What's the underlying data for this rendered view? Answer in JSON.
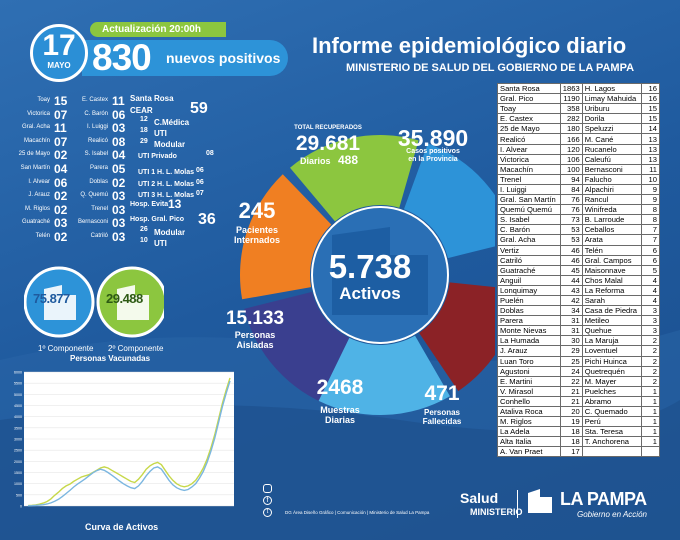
{
  "header": {
    "day": "17",
    "month": "MAYO",
    "update_label": "Actualización 20:00h",
    "new_cases": "830",
    "new_cases_label": "nuevos positivos",
    "title": "Informe epidemiológico diario",
    "subtitle": "MINISTERIO DE SALUD DEL GOBIERNO DE LA PAMPA"
  },
  "localities_left": [
    {
      "name": "Toay",
      "value": "15"
    },
    {
      "name": "Victorica",
      "value": "07"
    },
    {
      "name": "Gral. Acha",
      "value": "11"
    },
    {
      "name": "Macachín",
      "value": "07"
    },
    {
      "name": "25 de Mayo",
      "value": "02"
    },
    {
      "name": "San Martín",
      "value": "04"
    },
    {
      "name": "I. Alvear",
      "value": "06"
    },
    {
      "name": "J. Arauz",
      "value": "02"
    },
    {
      "name": "M. Riglos",
      "value": "02"
    },
    {
      "name": "Guatraché",
      "value": "03"
    },
    {
      "name": "Telén",
      "value": "02"
    }
  ],
  "localities_mid": [
    {
      "name": "E. Castex",
      "value": "11"
    },
    {
      "name": "C. Barón",
      "value": "06"
    },
    {
      "name": "I. Luiggi",
      "value": "03"
    },
    {
      "name": "Realicó",
      "value": "08"
    },
    {
      "name": "S. Isabel",
      "value": "04"
    },
    {
      "name": "Parera",
      "value": "05"
    },
    {
      "name": "Doblas",
      "value": "02"
    },
    {
      "name": "Q. Quemú",
      "value": "03"
    },
    {
      "name": "Trenel",
      "value": "03"
    },
    {
      "name": "Bernasconi",
      "value": "03"
    },
    {
      "name": "Catriló",
      "value": "03"
    }
  ],
  "santa_rosa": {
    "label": "Santa Rosa",
    "cear_label": "CEAR",
    "cear_value": "59",
    "lines": [
      {
        "value": "12",
        "label": "C.Médica"
      },
      {
        "value": "18",
        "label": "UTI"
      },
      {
        "value": "29",
        "label": "Modular"
      }
    ],
    "uti_privado_label": "UTI Privado",
    "uti_privado_value": "08",
    "uti_lines": [
      {
        "label": "UTI 1 H. L. Molas",
        "value": "06"
      },
      {
        "label": "UTI 2 H. L. Molas",
        "value": "06"
      },
      {
        "label": "UTI 3 H. L. Molas",
        "value": "07"
      }
    ],
    "evita_label": "Hosp. Evita",
    "evita_value": "13"
  },
  "gral_pico": {
    "label": "Hosp. Gral. Pico",
    "value": "36",
    "lines": [
      {
        "value": "26",
        "label": "Modular"
      },
      {
        "value": "10",
        "label": "UTI"
      }
    ]
  },
  "vaccination": {
    "first_value": "75.877",
    "second_value": "29.488",
    "first_label": "1º Componente",
    "second_label": "2º Componente",
    "title": "Personas Vacunadas"
  },
  "chart_data": {
    "type": "line",
    "title": "Curva de Activos",
    "xlabel": "",
    "ylabel": "",
    "ylim": [
      0,
      6000
    ],
    "y_ticks": [
      "6000",
      "5500",
      "5000",
      "4500",
      "4000",
      "3500",
      "3000",
      "2500",
      "2000",
      "1500",
      "1000",
      "500",
      "0"
    ],
    "series": [
      {
        "values": [
          20,
          30,
          50,
          80,
          130,
          200,
          320,
          480,
          620,
          780,
          900,
          980,
          1100,
          1200,
          1300,
          1350,
          1400,
          1500,
          1600,
          1700,
          1750,
          1700,
          1600,
          1500,
          1400,
          1300,
          1200,
          1100,
          1050,
          1200,
          1400,
          1650,
          1800,
          1900,
          1950,
          1850,
          1600,
          1350,
          1150,
          1000,
          900,
          860,
          900,
          1000,
          1150,
          1400,
          1700,
          2100,
          2600,
          3200,
          3900,
          4600,
          5200,
          5738
        ],
        "color": "#c7d84a"
      },
      {
        "values": [
          10,
          15,
          25,
          40,
          60,
          90,
          140,
          210,
          300,
          420,
          560,
          700,
          850,
          980,
          1100,
          1220,
          1350,
          1480,
          1580,
          1650,
          1600,
          1500,
          1380,
          1250,
          1120,
          1000,
          900,
          820,
          780,
          900,
          1100,
          1350,
          1550,
          1700,
          1750,
          1650,
          1400,
          1150,
          950,
          820,
          740,
          700,
          740,
          850,
          1000,
          1250,
          1550,
          1950,
          2450,
          3050,
          3750,
          4450,
          5050,
          5600
        ],
        "color": "#7bb6e0"
      }
    ]
  },
  "wheel": {
    "recovered_label": "TOTAL RECUPERADOS",
    "recovered_value": "29.681",
    "daily_label": "Diarios",
    "daily_value": "488",
    "positives_value": "35.890",
    "positives_label_1": "Casos positivos",
    "positives_label_2": "en la Provincia",
    "hospitalized_value": "245",
    "hospitalized_label_1": "Pacientes",
    "hospitalized_label_2": "Internados",
    "active_value": "5.738",
    "active_label": "Activos",
    "isolated_value": "15.133",
    "isolated_label_1": "Personas",
    "isolated_label_2": "Aisladas",
    "samples_value": "2468",
    "samples_label_1": "Muestras",
    "samples_label_2": "Diarias",
    "deaths_value": "471",
    "deaths_label_1": "Personas",
    "deaths_label_2": "Fallecidas",
    "colors": {
      "recovered": "#8cc63f",
      "positives": "#2d93d8",
      "hospitalized": "#f07f22",
      "isolated": "#3a3f8f",
      "samples": "#4fb3e6",
      "deaths": "#8b2226"
    }
  },
  "table": [
    [
      "Santa Rosa",
      "1863",
      "H. Lagos",
      "16"
    ],
    [
      "Gral. Pico",
      "1190",
      "Limay Mahuida",
      "16"
    ],
    [
      "Toay",
      "358",
      "Uriburu",
      "15"
    ],
    [
      "E. Castex",
      "282",
      "Dorila",
      "15"
    ],
    [
      "25 de Mayo",
      "180",
      "Speluzzi",
      "14"
    ],
    [
      "Realicó",
      "166",
      "M. Cané",
      "13"
    ],
    [
      "I. Alvear",
      "120",
      "Rucanelo",
      "13"
    ],
    [
      "Victorica",
      "106",
      "Caleufú",
      "13"
    ],
    [
      "Macachín",
      "100",
      "Bernasconi",
      "11"
    ],
    [
      "Trenel",
      "94",
      "Falucho",
      "10"
    ],
    [
      "I. Luiggi",
      "84",
      "Alpachiri",
      "9"
    ],
    [
      "Gral. San Martín",
      "76",
      "Rancul",
      "9"
    ],
    [
      "Quemú Quemú",
      "76",
      "Winifreda",
      "8"
    ],
    [
      "S. Isabel",
      "73",
      "B. Larroude",
      "8"
    ],
    [
      "C. Barón",
      "53",
      "Ceballos",
      "7"
    ],
    [
      "Gral. Acha",
      "53",
      "Arata",
      "7"
    ],
    [
      "Vertiz",
      "46",
      "Telén",
      "6"
    ],
    [
      "Catriló",
      "46",
      "Gral. Campos",
      "6"
    ],
    [
      "Guatraché",
      "45",
      "Maisonnave",
      "5"
    ],
    [
      "Anguil",
      "44",
      "Chos Malal",
      "4"
    ],
    [
      "Lonquimay",
      "43",
      "La Reforma",
      "4"
    ],
    [
      "Puelén",
      "42",
      "Sarah",
      "4"
    ],
    [
      "Doblas",
      "34",
      "Casa de Piedra",
      "3"
    ],
    [
      "Parera",
      "31",
      "Metileo",
      "3"
    ],
    [
      "Monte Nievas",
      "31",
      "Quehue",
      "3"
    ],
    [
      "La Humada",
      "30",
      "La Maruja",
      "2"
    ],
    [
      "J. Arauz",
      "29",
      "Loventuel",
      "2"
    ],
    [
      "Luan Toro",
      "25",
      "Pichi Huinca",
      "2"
    ],
    [
      "Agustoni",
      "24",
      "Quetrequén",
      "2"
    ],
    [
      "E. Martini",
      "22",
      "M. Mayer",
      "2"
    ],
    [
      "V. Mirasol",
      "21",
      "Puelches",
      "1"
    ],
    [
      "Conhello",
      "21",
      "Abramo",
      "1"
    ],
    [
      "Ataliva Roca",
      "20",
      "C. Quemado",
      "1"
    ],
    [
      "M. Riglos",
      "19",
      "Perú",
      "1"
    ],
    [
      "La Adela",
      "18",
      "Sta. Teresa",
      "1"
    ],
    [
      "Alta Italia",
      "18",
      "T. Anchorena",
      "1"
    ],
    [
      "A. Van Praet",
      "17",
      "",
      ""
    ]
  ],
  "footer": {
    "credits": "DG Área Diseño Gráfico  |  Comunicación  |  Ministerio de Salud La Pampa",
    "salud": "Salud",
    "ministerio": "MINISTERIO",
    "brand": "LA PAMPA",
    "brand_sub": "Gobierno en Acción"
  }
}
